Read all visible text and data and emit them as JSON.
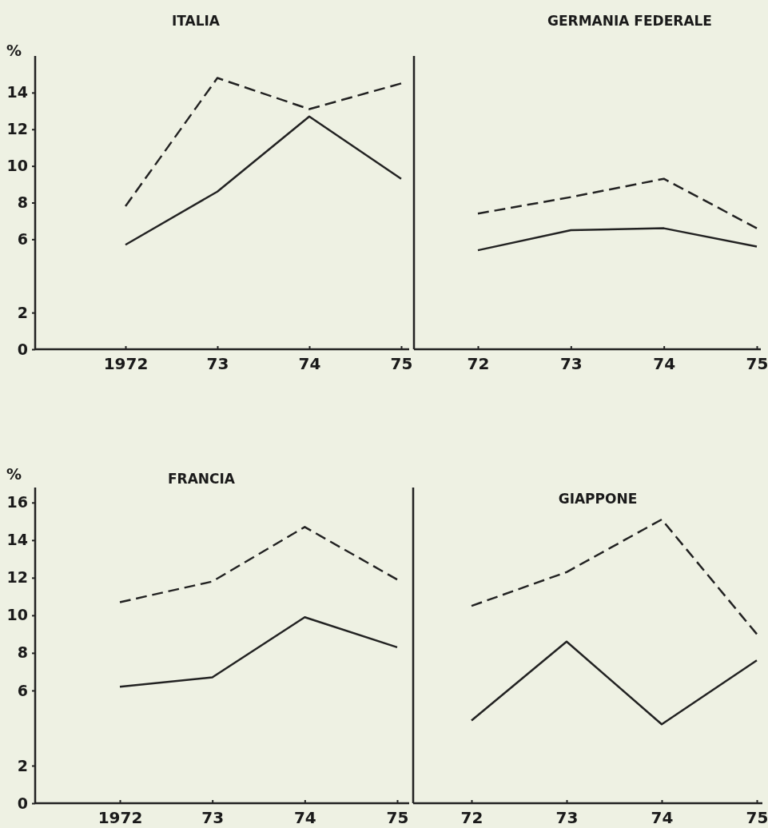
{
  "chart_data": [
    {
      "type": "line",
      "title": "ITALIA",
      "ylabel": "%",
      "categories": [
        "1972",
        "73",
        "74",
        "75"
      ],
      "ylim": [
        0,
        16
      ],
      "yticks": [
        0,
        2,
        6,
        8,
        10,
        12,
        14
      ],
      "series": [
        {
          "color": "#222222",
          "line_style": "dashed",
          "values": [
            7.8,
            14.8,
            13.1,
            14.5
          ]
        },
        {
          "color": "#222222",
          "line_style": "solid",
          "values": [
            5.7,
            8.6,
            12.7,
            9.3
          ]
        }
      ]
    },
    {
      "type": "line",
      "title": "GERMANIA FEDERALE",
      "categories": [
        "72",
        "73",
        "74",
        "75"
      ],
      "ylim": [
        0,
        16
      ],
      "tick_labels": "x",
      "series": [
        {
          "color": "#222222",
          "line_style": "dashed",
          "values": [
            7.4,
            8.3,
            9.3,
            6.6
          ]
        },
        {
          "color": "#222222",
          "line_style": "solid",
          "values": [
            5.4,
            6.5,
            6.6,
            5.6
          ]
        }
      ]
    },
    {
      "type": "line",
      "title": "FRANCIA",
      "ylabel": "%",
      "categories": [
        "1972",
        "73",
        "74",
        "75"
      ],
      "ylim": [
        0,
        16.8
      ],
      "yticks": [
        0,
        2,
        6,
        8,
        10,
        12,
        14,
        16
      ],
      "series": [
        {
          "color": "#222222",
          "line_style": "dashed",
          "values": [
            10.7,
            11.8,
            14.7,
            11.9
          ]
        },
        {
          "color": "#222222",
          "line_style": "solid",
          "values": [
            6.2,
            6.7,
            9.9,
            8.3
          ]
        }
      ]
    },
    {
      "type": "line",
      "title": "GIAPPONE",
      "categories": [
        "72",
        "73",
        "74",
        "75"
      ],
      "ylim": [
        0,
        16.8
      ],
      "tick_labels": "x",
      "series": [
        {
          "color": "#222222",
          "line_style": "dashed",
          "values": [
            10.5,
            12.3,
            15.1,
            9.0
          ]
        },
        {
          "color": "#222222",
          "line_style": "solid",
          "values": [
            4.4,
            8.6,
            4.2,
            7.6
          ]
        }
      ]
    }
  ]
}
